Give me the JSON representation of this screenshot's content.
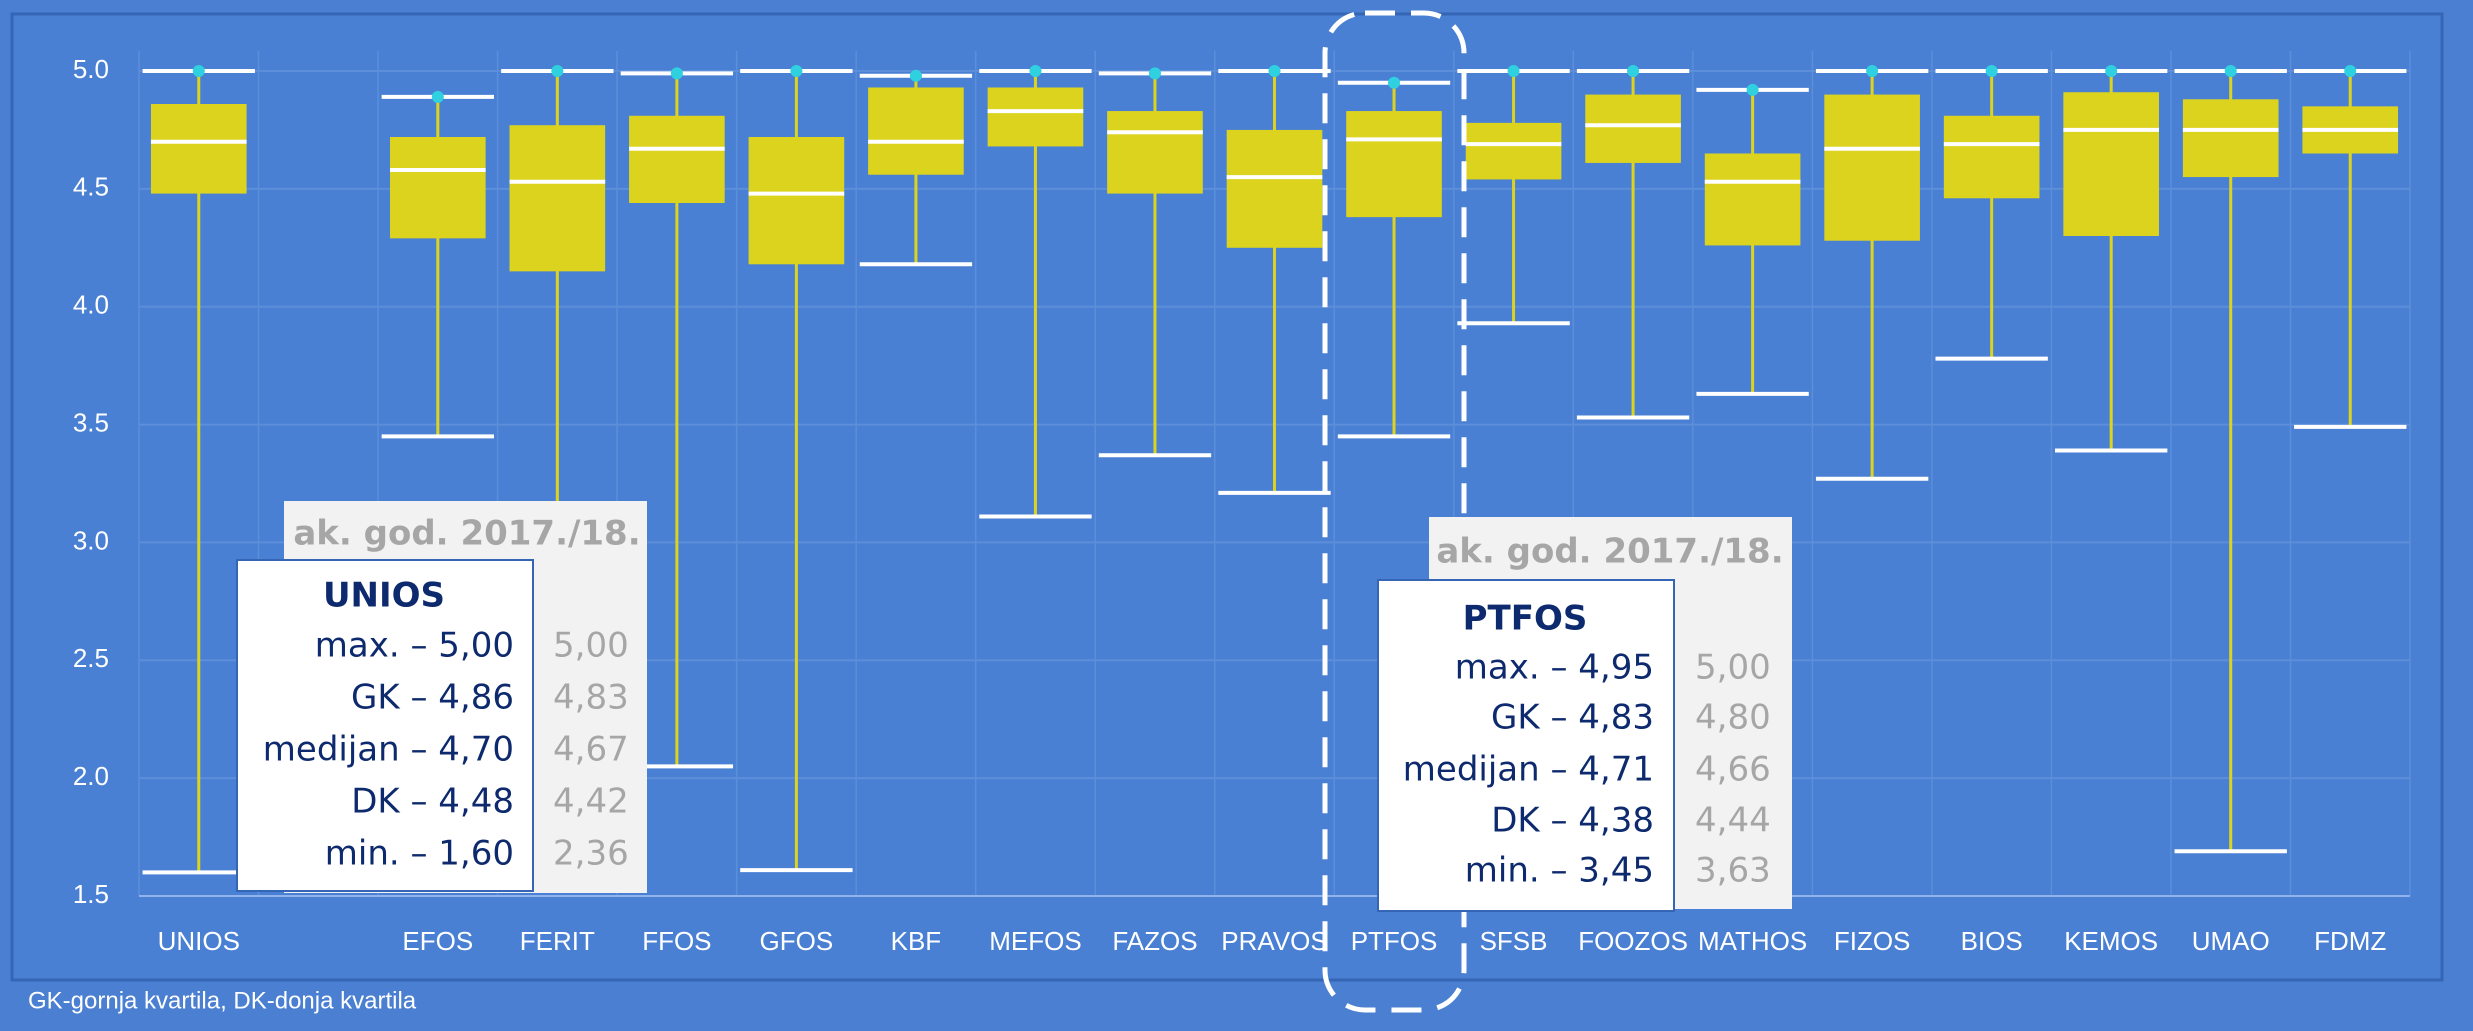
{
  "chart_data": {
    "type": "box",
    "categories": [
      "UNIOS",
      null,
      "EFOS",
      "FERIT",
      "FFOS",
      "GFOS",
      "KBF",
      "MEFOS",
      "FAZOS",
      "PRAVOS",
      "PTFOS",
      "SFSB",
      "FOOZOS",
      "MATHOS",
      "FIZOS",
      "BIOS",
      "KEMOS",
      "UMAO",
      "FDMZ"
    ],
    "boxes": [
      {
        "min": 1.6,
        "q1": 4.48,
        "median": 4.7,
        "q3": 4.86,
        "max": 5.0
      },
      null,
      {
        "min": 3.45,
        "q1": 4.29,
        "median": 4.58,
        "q3": 4.72,
        "max": 4.89
      },
      {
        "min": 2.5,
        "q1": 4.15,
        "median": 4.53,
        "q3": 4.77,
        "max": 5.0
      },
      {
        "min": 2.05,
        "q1": 4.44,
        "median": 4.67,
        "q3": 4.81,
        "max": 4.99
      },
      {
        "min": 1.61,
        "q1": 4.18,
        "median": 4.48,
        "q3": 4.72,
        "max": 5.0
      },
      {
        "min": 4.18,
        "q1": 4.56,
        "median": 4.7,
        "q3": 4.93,
        "max": 4.98
      },
      {
        "min": 3.11,
        "q1": 4.68,
        "median": 4.83,
        "q3": 4.93,
        "max": 5.0
      },
      {
        "min": 3.37,
        "q1": 4.48,
        "median": 4.74,
        "q3": 4.83,
        "max": 4.99
      },
      {
        "min": 3.21,
        "q1": 4.25,
        "median": 4.55,
        "q3": 4.75,
        "max": 5.0
      },
      {
        "min": 3.45,
        "q1": 4.38,
        "median": 4.71,
        "q3": 4.83,
        "max": 4.95
      },
      {
        "min": 3.93,
        "q1": 4.54,
        "median": 4.69,
        "q3": 4.78,
        "max": 5.0
      },
      {
        "min": 3.53,
        "q1": 4.61,
        "median": 4.77,
        "q3": 4.9,
        "max": 5.0
      },
      {
        "min": 3.63,
        "q1": 4.26,
        "median": 4.53,
        "q3": 4.65,
        "max": 4.92
      },
      {
        "min": 3.27,
        "q1": 4.28,
        "median": 4.67,
        "q3": 4.9,
        "max": 5.0
      },
      {
        "min": 3.78,
        "q1": 4.46,
        "median": 4.69,
        "q3": 4.81,
        "max": 5.0
      },
      {
        "min": 3.39,
        "q1": 4.3,
        "median": 4.75,
        "q3": 4.91,
        "max": 5.0
      },
      {
        "min": 1.69,
        "q1": 4.55,
        "median": 4.75,
        "q3": 4.88,
        "max": 5.0
      },
      {
        "min": 3.49,
        "q1": 4.65,
        "median": 4.75,
        "q3": 4.85,
        "max": 5.0
      }
    ],
    "color": "#dcd31f",
    "median_color": "#ffffff",
    "max_marker_color": "#2fd0e0",
    "ylim": [
      1.5,
      5.0
    ],
    "yticks": [
      {
        "value": 1.5,
        "label": "1.5"
      },
      {
        "value": 2.0,
        "label": "2.0"
      },
      {
        "value": 2.5,
        "label": "2.5"
      },
      {
        "value": 3.0,
        "label": "3.0"
      },
      {
        "value": 3.5,
        "label": "3.5"
      },
      {
        "value": 4.0,
        "label": "4.0"
      },
      {
        "value": 4.5,
        "label": "4.5"
      },
      {
        "value": 5.0,
        "label": "5.0"
      }
    ],
    "grid": true,
    "footnote": "GK-gornja kvartila, DK-donja kvartila"
  },
  "annotations": [
    {
      "header": "ak. god. 2017./18.",
      "title": "UNIOS",
      "rows": [
        {
          "label": "max. – 5,00",
          "previous": "5,00"
        },
        {
          "label": "GK – 4,86",
          "previous": "4,83"
        },
        {
          "label": "medijan – 4,70",
          "previous": "4,67"
        },
        {
          "label": "DK – 4,48",
          "previous": "4,42"
        },
        {
          "label": "min. – 1,60",
          "previous": "2,36"
        }
      ]
    },
    {
      "header": "ak. god. 2017./18.",
      "title": "PTFOS",
      "rows": [
        {
          "label": "max. – 4,95",
          "previous": "5,00"
        },
        {
          "label": "GK – 4,83",
          "previous": "4,80"
        },
        {
          "label": "medijan – 4,71",
          "previous": "4,66"
        },
        {
          "label": "DK – 4,38",
          "previous": "4,44"
        },
        {
          "label": "min. – 3,45",
          "previous": "3,63"
        }
      ]
    }
  ]
}
